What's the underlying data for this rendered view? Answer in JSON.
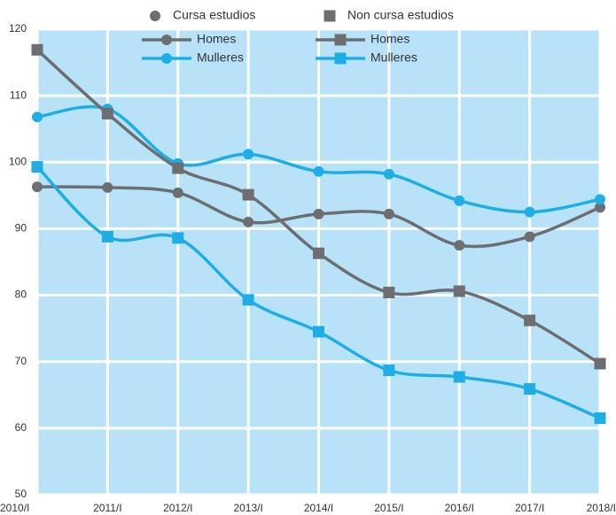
{
  "chart_data": {
    "type": "line",
    "categories": [
      "2010/I",
      "2011/I",
      "2012/I",
      "2013/I",
      "2014/I",
      "2015/I",
      "2016/I",
      "2017/I",
      "2018/I"
    ],
    "legend_groups": [
      "Cursa estudios",
      "Non cursa estudios"
    ],
    "series": [
      {
        "name": "Homes",
        "color": "#6d6e71",
        "marker": "circle",
        "values": [
          96.3,
          96.2,
          95.4,
          91.0,
          92.2,
          92.2,
          87.5,
          88.8,
          93.2
        ]
      },
      {
        "name": "Mulleres",
        "color": "#1eaee6",
        "marker": "circle",
        "values": [
          106.8,
          108.0,
          99.8,
          101.2,
          98.6,
          98.2,
          94.2,
          92.5,
          94.4
        ]
      },
      {
        "name": "Homes",
        "color": "#6d6e71",
        "marker": "square",
        "values": [
          116.9,
          107.3,
          99.1,
          95.1,
          86.3,
          80.4,
          80.6,
          76.2,
          69.7
        ]
      },
      {
        "name": "Mulleres",
        "color": "#1eaee6",
        "marker": "square",
        "values": [
          99.3,
          88.8,
          88.6,
          79.3,
          74.5,
          68.7,
          67.7,
          65.9,
          61.5
        ]
      }
    ],
    "ylim": [
      50,
      120
    ],
    "yticks": [
      50,
      60,
      70,
      80,
      90,
      100,
      110,
      120
    ],
    "grid": true,
    "smooth": true,
    "plot_background": "#b7e2f8"
  }
}
